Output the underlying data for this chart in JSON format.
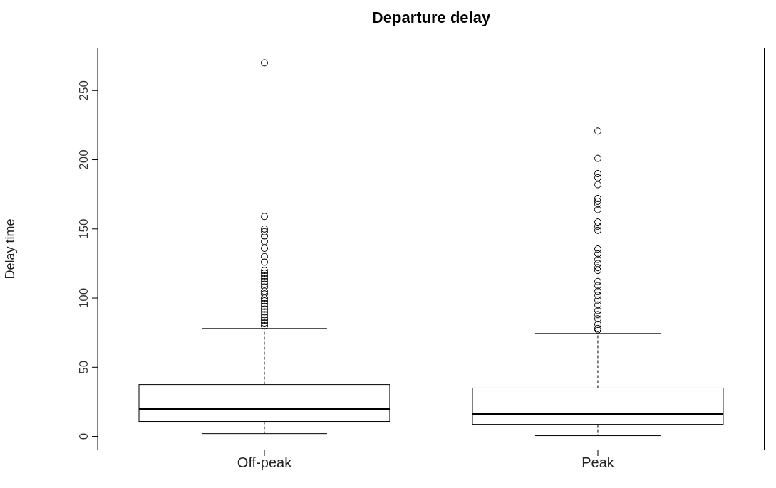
{
  "chart_data": {
    "type": "box",
    "title": "Departure delay",
    "ylabel": "Delay time",
    "categories": [
      "Off-peak",
      "Peak"
    ],
    "boxes": [
      {
        "low": 2,
        "q1": 10.8,
        "median": 19.5,
        "q3": 37.5,
        "high": 78,
        "outliers": [
          270,
          159,
          150,
          148,
          145,
          141,
          136,
          130,
          126,
          120,
          118,
          116,
          114,
          112,
          110,
          108,
          105,
          103,
          100,
          98,
          96,
          94,
          92,
          90,
          88,
          86,
          84,
          82,
          80
        ]
      },
      {
        "low": 0.5,
        "q1": 8.7,
        "median": 16.4,
        "q3": 35,
        "high": 74.4,
        "outliers": [
          220.7,
          201,
          190,
          187,
          182,
          172,
          170,
          168,
          164,
          155,
          152,
          149,
          135.5,
          132,
          128,
          125,
          122,
          120,
          112,
          109,
          105,
          102,
          98.6,
          95,
          91,
          88,
          85,
          81,
          78,
          77
        ]
      }
    ],
    "ylim": [
      -10,
      281
    ],
    "yticks": [
      0,
      50,
      100,
      150,
      200,
      250
    ],
    "grid": false
  }
}
